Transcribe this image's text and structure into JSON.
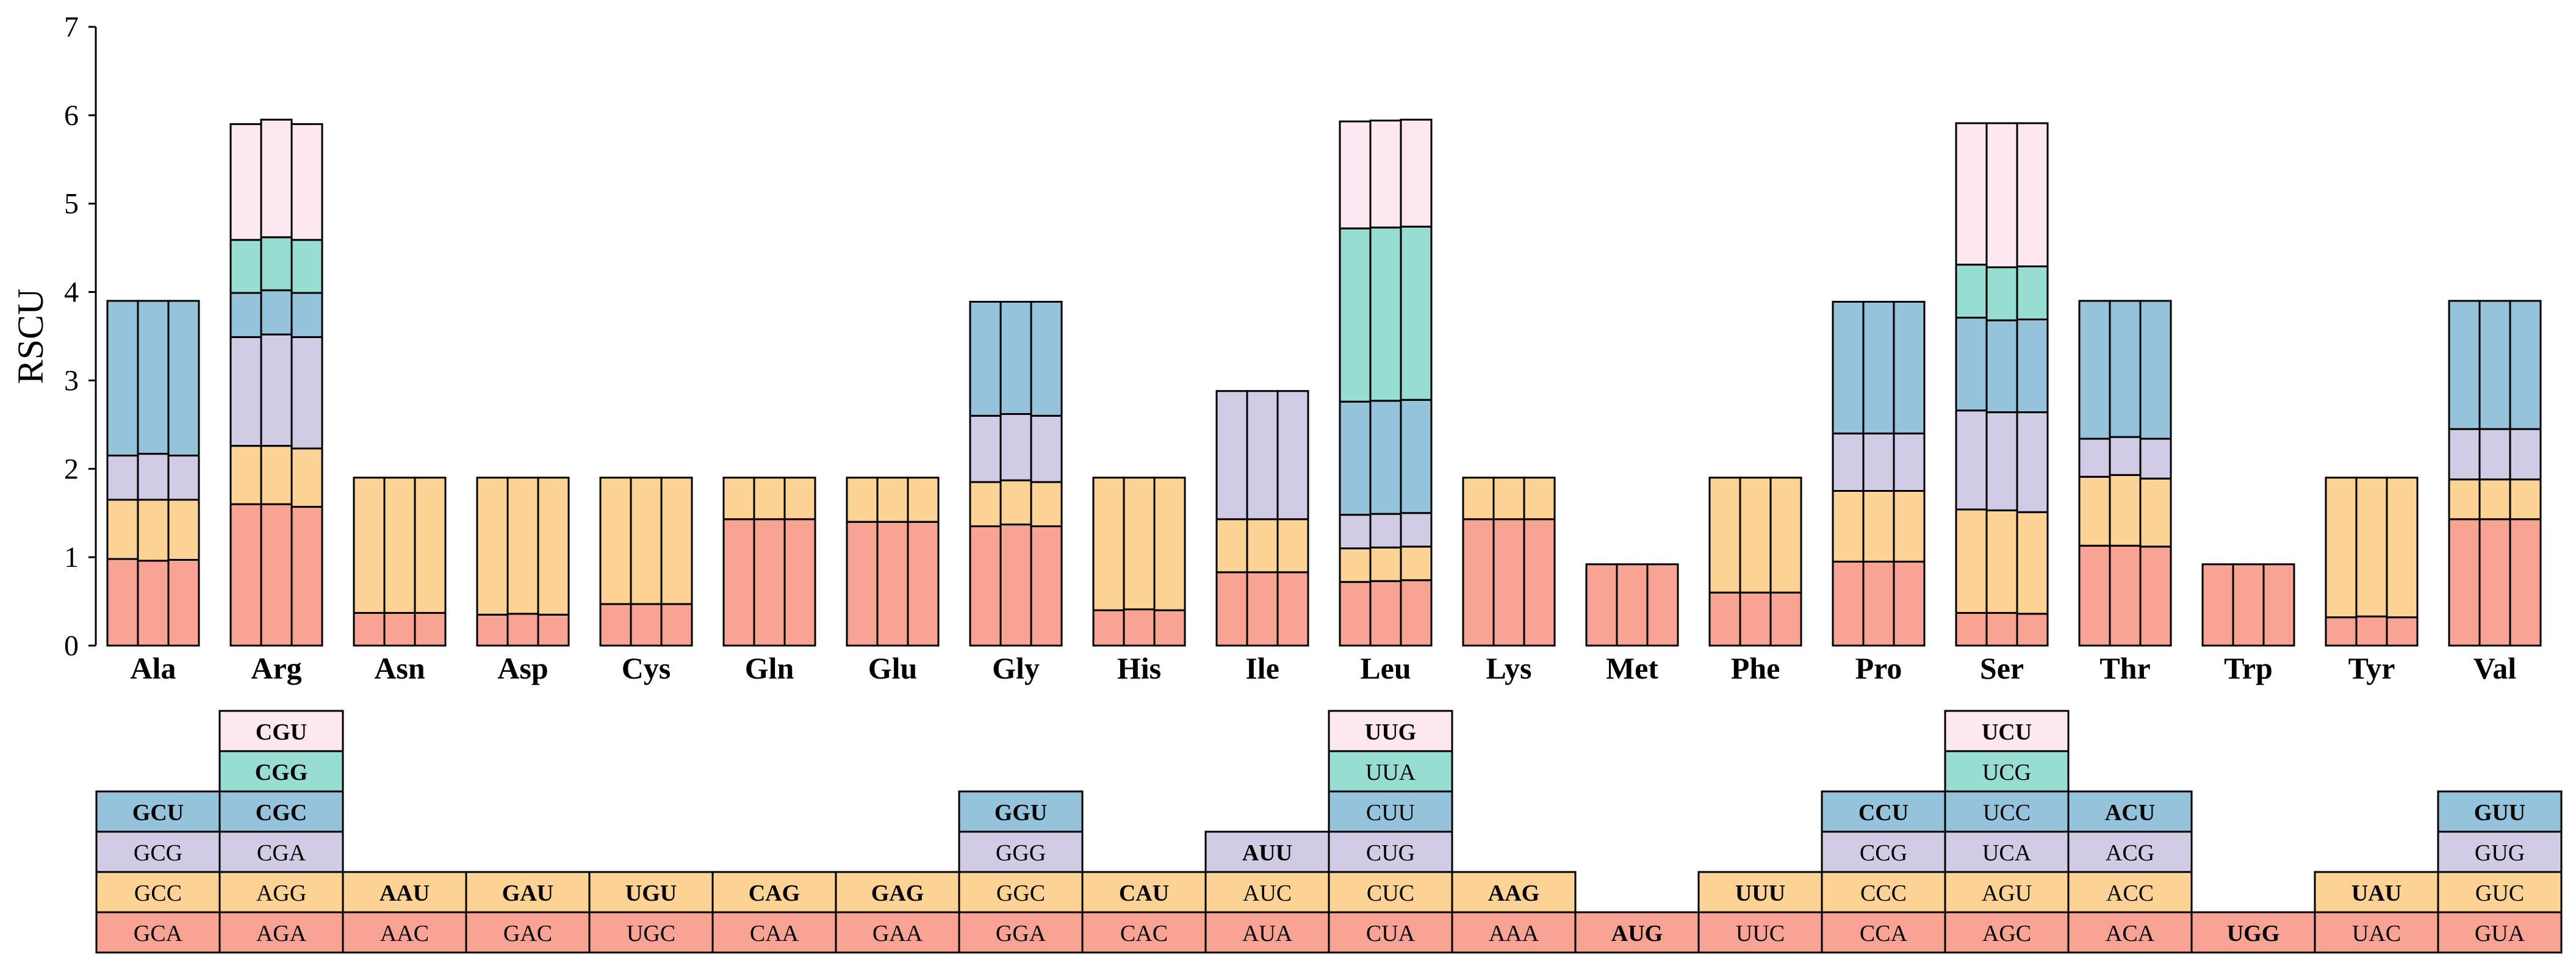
{
  "chart_data": {
    "type": "bar",
    "subtype": "stacked-grouped",
    "title": "",
    "xlabel": "",
    "ylabel": "RSCU",
    "ylim": [
      0,
      7
    ],
    "yticks": [
      0,
      1,
      2,
      3,
      4,
      5,
      6,
      7
    ],
    "grid": false,
    "bars_per_group": 3,
    "colors": [
      "#f9a394",
      "#fdd295",
      "#d2cbe6",
      "#95c3dc",
      "#98ddd2",
      "#fde7f1"
    ],
    "amino_acids": [
      {
        "name": "Ala",
        "codons": [
          "GCA",
          "GCC",
          "GCG",
          "GCU"
        ],
        "bold": [
          false,
          false,
          false,
          true
        ],
        "bars": [
          [
            0.98,
            0.67,
            0.5,
            1.75
          ],
          [
            0.96,
            0.69,
            0.52,
            1.73
          ],
          [
            0.97,
            0.68,
            0.5,
            1.75
          ]
        ]
      },
      {
        "name": "Arg",
        "codons": [
          "AGA",
          "AGG",
          "CGA",
          "CGC",
          "CGG",
          "CGU"
        ],
        "bold": [
          false,
          false,
          false,
          true,
          true,
          true
        ],
        "bars": [
          [
            1.6,
            0.66,
            1.23,
            0.5,
            0.6,
            1.31
          ],
          [
            1.6,
            0.66,
            1.26,
            0.5,
            0.6,
            1.33
          ],
          [
            1.57,
            0.66,
            1.26,
            0.5,
            0.6,
            1.31
          ]
        ]
      },
      {
        "name": "Asn",
        "codons": [
          "AAC",
          "AAU"
        ],
        "bold": [
          false,
          true
        ],
        "bars": [
          [
            0.37,
            1.53
          ],
          [
            0.37,
            1.53
          ],
          [
            0.37,
            1.53
          ]
        ]
      },
      {
        "name": "Asp",
        "codons": [
          "GAC",
          "GAU"
        ],
        "bold": [
          false,
          true
        ],
        "bars": [
          [
            0.35,
            1.55
          ],
          [
            0.36,
            1.54
          ],
          [
            0.35,
            1.55
          ]
        ]
      },
      {
        "name": "Cys",
        "codons": [
          "UGC",
          "UGU"
        ],
        "bold": [
          false,
          true
        ],
        "bars": [
          [
            0.47,
            1.43
          ],
          [
            0.47,
            1.43
          ],
          [
            0.47,
            1.43
          ]
        ]
      },
      {
        "name": "Gln",
        "codons": [
          "CAA",
          "CAG"
        ],
        "bold": [
          false,
          true
        ],
        "bars": [
          [
            1.43,
            0.47
          ],
          [
            1.43,
            0.47
          ],
          [
            1.43,
            0.47
          ]
        ]
      },
      {
        "name": "Glu",
        "codons": [
          "GAA",
          "GAG"
        ],
        "bold": [
          false,
          true
        ],
        "bars": [
          [
            1.4,
            0.5
          ],
          [
            1.4,
            0.5
          ],
          [
            1.4,
            0.5
          ]
        ]
      },
      {
        "name": "Gly",
        "codons": [
          "GGA",
          "GGC",
          "GGG",
          "GGU"
        ],
        "bold": [
          false,
          false,
          false,
          true
        ],
        "bars": [
          [
            1.35,
            0.5,
            0.75,
            1.29
          ],
          [
            1.37,
            0.5,
            0.75,
            1.27
          ],
          [
            1.35,
            0.5,
            0.75,
            1.29
          ]
        ]
      },
      {
        "name": "His",
        "codons": [
          "CAC",
          "CAU"
        ],
        "bold": [
          false,
          true
        ],
        "bars": [
          [
            0.4,
            1.5
          ],
          [
            0.41,
            1.49
          ],
          [
            0.4,
            1.5
          ]
        ]
      },
      {
        "name": "Ile",
        "codons": [
          "AUA",
          "AUC",
          "AUU"
        ],
        "bold": [
          false,
          false,
          true
        ],
        "bars": [
          [
            0.83,
            0.6,
            1.45
          ],
          [
            0.83,
            0.6,
            1.45
          ],
          [
            0.83,
            0.6,
            1.45
          ]
        ]
      },
      {
        "name": "Leu",
        "codons": [
          "CUA",
          "CUC",
          "CUG",
          "CUU",
          "UUA",
          "UUG"
        ],
        "bold": [
          false,
          false,
          false,
          false,
          false,
          true
        ],
        "bars": [
          [
            0.72,
            0.38,
            0.38,
            1.28,
            1.96,
            1.21
          ],
          [
            0.73,
            0.38,
            0.38,
            1.28,
            1.96,
            1.21
          ],
          [
            0.74,
            0.38,
            0.38,
            1.28,
            1.96,
            1.21
          ]
        ]
      },
      {
        "name": "Lys",
        "codons": [
          "AAA",
          "AAG"
        ],
        "bold": [
          false,
          true
        ],
        "bars": [
          [
            1.43,
            0.47
          ],
          [
            1.43,
            0.47
          ],
          [
            1.43,
            0.47
          ]
        ]
      },
      {
        "name": "Met",
        "codons": [
          "AUG"
        ],
        "bold": [
          true
        ],
        "bars": [
          [
            0.92
          ],
          [
            0.92
          ],
          [
            0.92
          ]
        ]
      },
      {
        "name": "Phe",
        "codons": [
          "UUC",
          "UUU"
        ],
        "bold": [
          false,
          true
        ],
        "bars": [
          [
            0.6,
            1.3
          ],
          [
            0.6,
            1.3
          ],
          [
            0.6,
            1.3
          ]
        ]
      },
      {
        "name": "Pro",
        "codons": [
          "CCA",
          "CCC",
          "CCG",
          "CCU"
        ],
        "bold": [
          false,
          false,
          false,
          true
        ],
        "bars": [
          [
            0.95,
            0.8,
            0.65,
            1.49
          ],
          [
            0.95,
            0.8,
            0.65,
            1.49
          ],
          [
            0.95,
            0.8,
            0.65,
            1.49
          ]
        ]
      },
      {
        "name": "Ser",
        "codons": [
          "AGC",
          "AGU",
          "UCA",
          "UCC",
          "UCG",
          "UCU"
        ],
        "bold": [
          false,
          false,
          false,
          false,
          false,
          true
        ],
        "bars": [
          [
            0.37,
            1.17,
            1.12,
            1.05,
            0.6,
            1.6
          ],
          [
            0.37,
            1.16,
            1.11,
            1.04,
            0.6,
            1.63
          ],
          [
            0.36,
            1.15,
            1.13,
            1.05,
            0.6,
            1.62
          ]
        ]
      },
      {
        "name": "Thr",
        "codons": [
          "ACA",
          "ACC",
          "ACG",
          "ACU"
        ],
        "bold": [
          false,
          false,
          false,
          true
        ],
        "bars": [
          [
            1.13,
            0.78,
            0.43,
            1.56
          ],
          [
            1.13,
            0.8,
            0.43,
            1.54
          ],
          [
            1.12,
            0.77,
            0.45,
            1.56
          ]
        ]
      },
      {
        "name": "Trp",
        "codons": [
          "UGG"
        ],
        "bold": [
          true
        ],
        "bars": [
          [
            0.92
          ],
          [
            0.92
          ],
          [
            0.92
          ]
        ]
      },
      {
        "name": "Tyr",
        "codons": [
          "UAC",
          "UAU"
        ],
        "bold": [
          false,
          true
        ],
        "bars": [
          [
            0.32,
            1.58
          ],
          [
            0.33,
            1.57
          ],
          [
            0.32,
            1.58
          ]
        ]
      },
      {
        "name": "Val",
        "codons": [
          "GUA",
          "GUC",
          "GUG",
          "GUU"
        ],
        "bold": [
          false,
          false,
          false,
          true
        ],
        "bars": [
          [
            1.43,
            0.45,
            0.57,
            1.45
          ],
          [
            1.43,
            0.45,
            0.57,
            1.45
          ],
          [
            1.43,
            0.45,
            0.57,
            1.45
          ]
        ]
      }
    ]
  }
}
